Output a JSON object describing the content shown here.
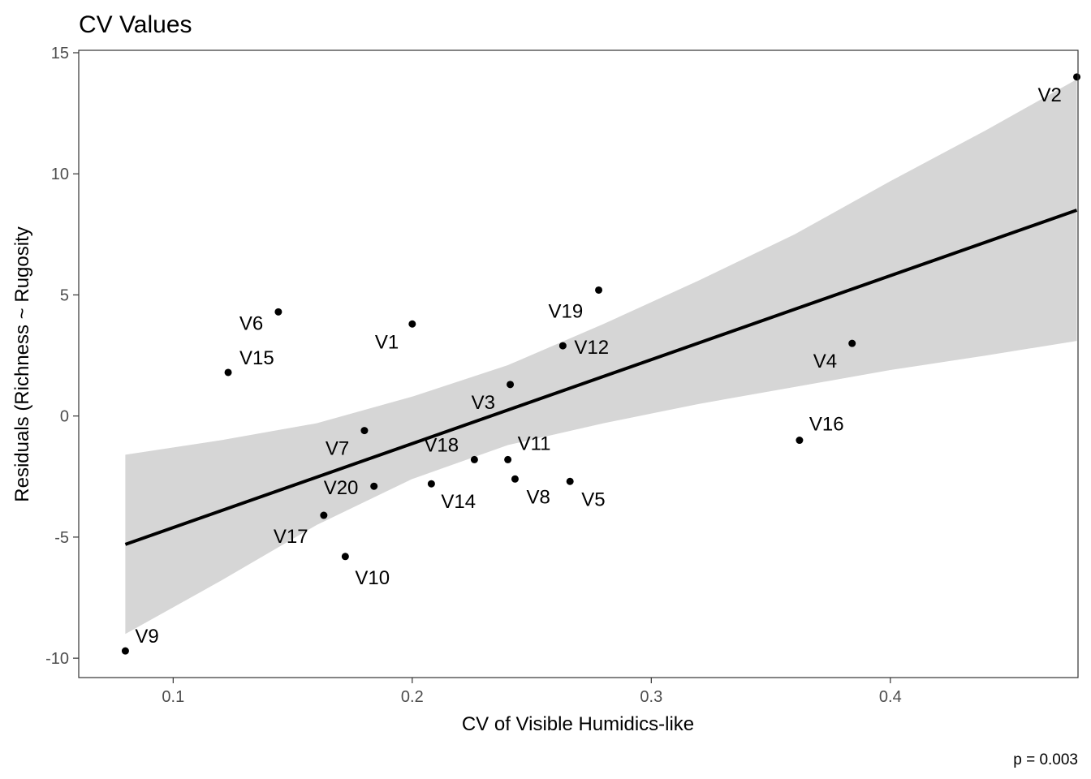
{
  "chart_data": {
    "type": "scatter",
    "title": "CV Values",
    "xlabel": "CV of Visible Humidics-like",
    "ylabel": "Residuals (Richness ~ Rugosity",
    "caption": "p = 0.003",
    "xlim": [
      0.0605,
      0.4785
    ],
    "ylim": [
      -10.8,
      15.1
    ],
    "x_ticks": [
      0.1,
      0.2,
      0.3,
      0.4
    ],
    "x_tick_labels": [
      "0.1",
      "0.2",
      "0.3",
      "0.4"
    ],
    "y_ticks": [
      -10,
      -5,
      0,
      5,
      10,
      15
    ],
    "y_tick_labels": [
      "-10",
      "-5",
      "0",
      "5",
      "10",
      "15"
    ],
    "grid": false,
    "points": [
      {
        "label": "V1",
        "x": 0.2,
        "y": 3.8
      },
      {
        "label": "V2",
        "x": 0.478,
        "y": 14.0
      },
      {
        "label": "V3",
        "x": 0.241,
        "y": 1.3
      },
      {
        "label": "V4",
        "x": 0.384,
        "y": 3.0
      },
      {
        "label": "V5",
        "x": 0.266,
        "y": -2.7
      },
      {
        "label": "V6",
        "x": 0.144,
        "y": 4.3
      },
      {
        "label": "V7",
        "x": 0.18,
        "y": -0.6
      },
      {
        "label": "V8",
        "x": 0.243,
        "y": -2.6
      },
      {
        "label": "V9",
        "x": 0.08,
        "y": -9.7
      },
      {
        "label": "V10",
        "x": 0.172,
        "y": -5.8
      },
      {
        "label": "V11",
        "x": 0.24,
        "y": -1.8
      },
      {
        "label": "V12",
        "x": 0.263,
        "y": 2.9
      },
      {
        "label": "V14",
        "x": 0.208,
        "y": -2.8
      },
      {
        "label": "V15",
        "x": 0.123,
        "y": 1.8
      },
      {
        "label": "V16",
        "x": 0.362,
        "y": -1.0
      },
      {
        "label": "V17",
        "x": 0.163,
        "y": -4.1
      },
      {
        "label": "V18",
        "x": 0.226,
        "y": -1.8
      },
      {
        "label": "V19",
        "x": 0.278,
        "y": 5.2
      },
      {
        "label": "V20",
        "x": 0.184,
        "y": -2.9
      }
    ],
    "fit": {
      "x0": 0.08,
      "y0": -5.3,
      "x1": 0.478,
      "y1": 8.5
    },
    "confidence_band": {
      "x": [
        0.08,
        0.12,
        0.16,
        0.2,
        0.24,
        0.28,
        0.32,
        0.36,
        0.4,
        0.44,
        0.478
      ],
      "upper": [
        -1.6,
        -1.0,
        -0.3,
        0.8,
        2.1,
        3.8,
        5.6,
        7.5,
        9.7,
        11.8,
        13.9
      ],
      "lower": [
        -9.0,
        -6.8,
        -4.5,
        -2.6,
        -1.2,
        -0.3,
        0.5,
        1.2,
        1.9,
        2.5,
        3.1
      ]
    },
    "colors": {
      "band": "#d6d6d6",
      "line": "#000000",
      "point": "#000000",
      "panel_border": "#333333",
      "tick_text": "#4d4d4d"
    }
  }
}
